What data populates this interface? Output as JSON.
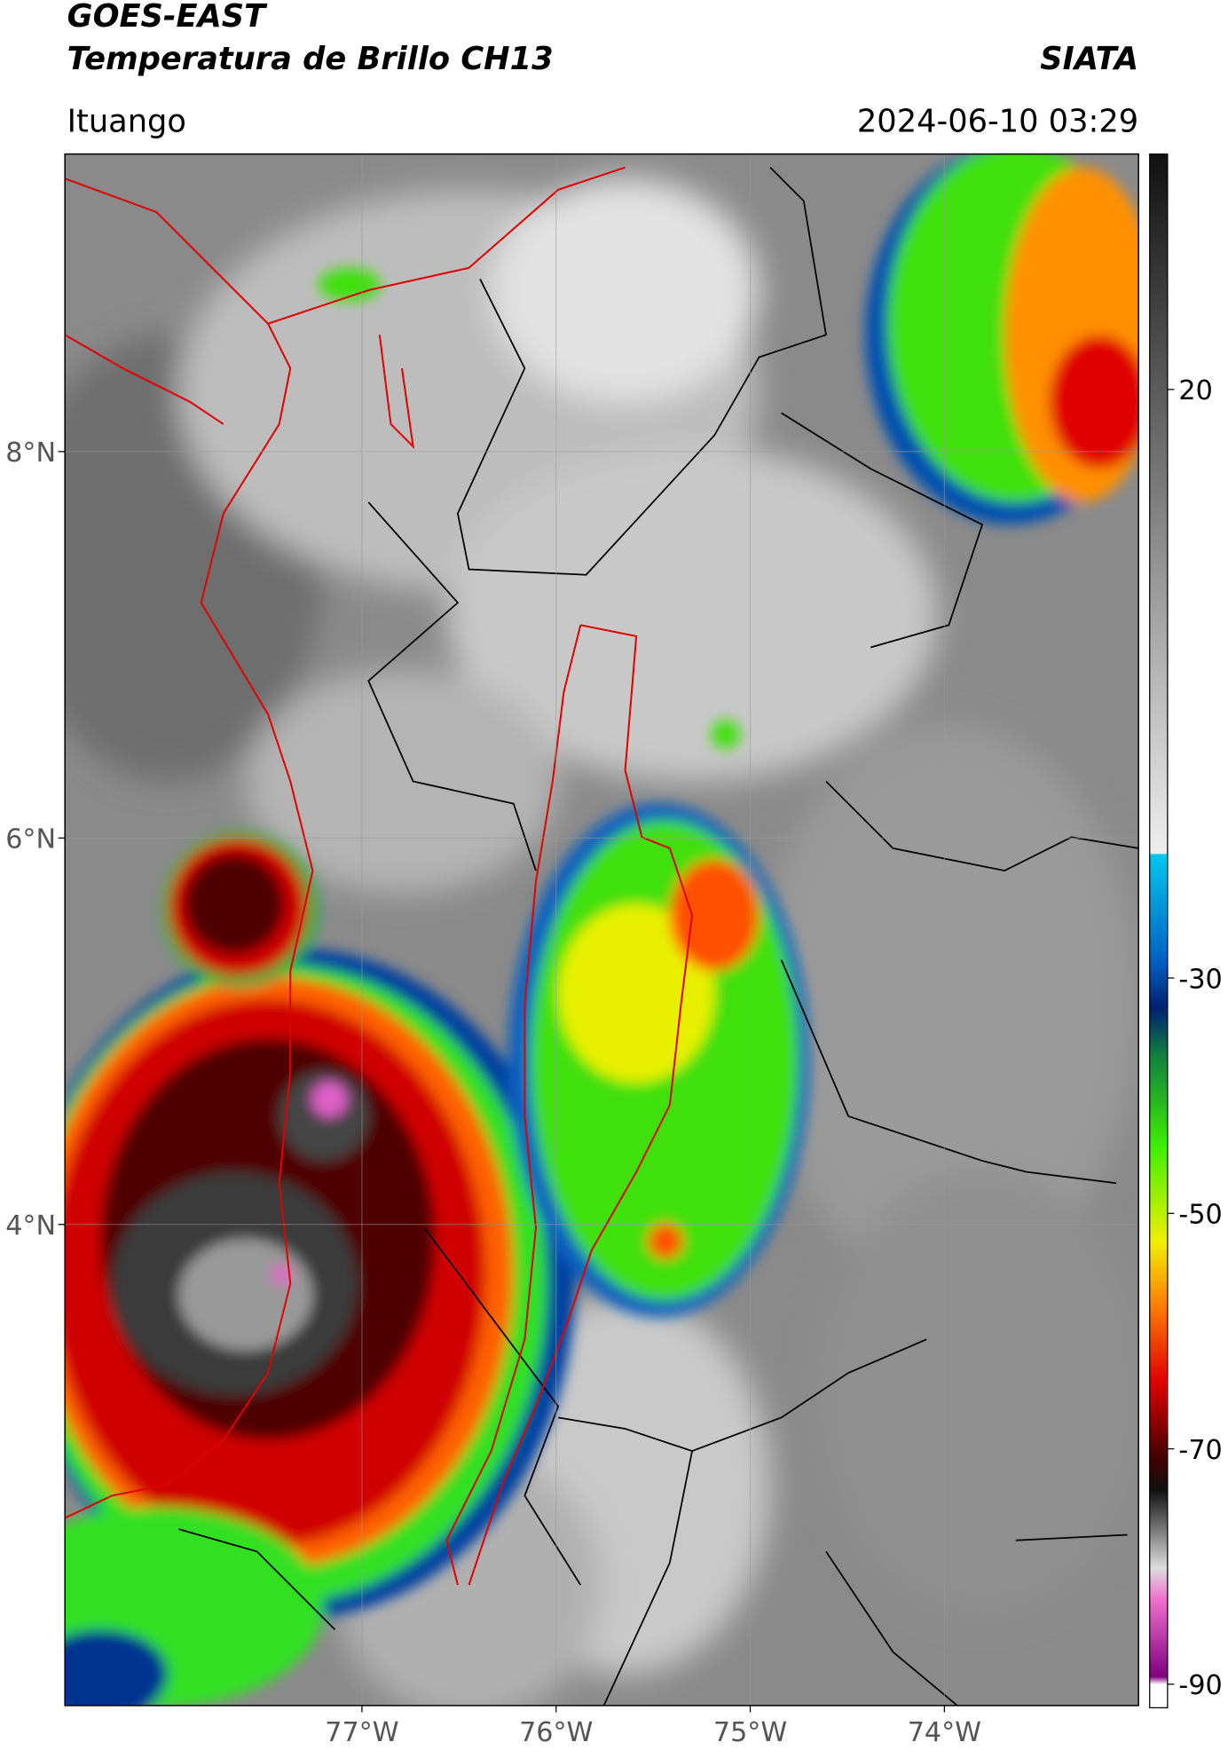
{
  "map_data": {
    "title": "GOES-EAST",
    "subtitle": "Temperatura de Brillo CH13",
    "source": "SIATA",
    "location": "Ituango",
    "datetime": "2024-06-10 03:29",
    "xlim": [
      -78.53,
      -73.0
    ],
    "ylim": [
      1.51,
      9.54
    ],
    "xticks": [
      {
        "value": -77,
        "label": "77°W"
      },
      {
        "value": -76,
        "label": "76°W"
      },
      {
        "value": -75,
        "label": "75°W"
      },
      {
        "value": -74,
        "label": "74°W"
      }
    ],
    "yticks": [
      {
        "value": 8,
        "label": "8°N"
      },
      {
        "value": 6,
        "label": "6°N"
      },
      {
        "value": 4,
        "label": "4°N"
      }
    ],
    "colorbar": {
      "lim": [
        -92,
        40
      ],
      "ticks": [
        20,
        -30,
        -50,
        -70,
        -90
      ]
    }
  }
}
